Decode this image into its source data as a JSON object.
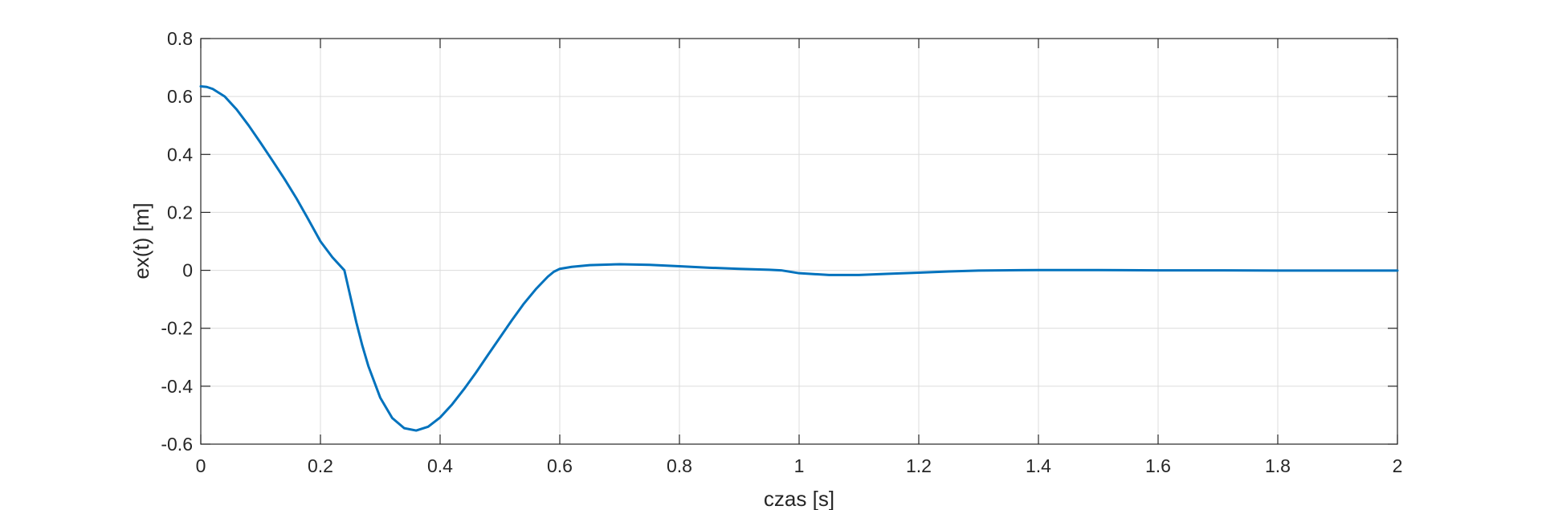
{
  "chart_data": {
    "type": "line",
    "title": "",
    "xlabel": "czas   [s]",
    "ylabel": "ex(t)   [m]",
    "xlim": [
      0,
      2
    ],
    "ylim": [
      -0.6,
      0.8
    ],
    "grid": true,
    "xticks": [
      0,
      0.2,
      0.4,
      0.6,
      0.8,
      1,
      1.2,
      1.4,
      1.6,
      1.8,
      2
    ],
    "xtick_labels": [
      "0",
      "0.2",
      "0.4",
      "0.6",
      "0.8",
      "1",
      "1.2",
      "1.4",
      "1.6",
      "1.8",
      "2"
    ],
    "yticks": [
      -0.6,
      -0.4,
      -0.2,
      0,
      0.2,
      0.4,
      0.6,
      0.8
    ],
    "ytick_labels": [
      "-0.6",
      "-0.4",
      "-0.2",
      "0",
      "0.2",
      "0.4",
      "0.6",
      "0.8"
    ],
    "series": [
      {
        "color": "#0072bd",
        "x": [
          0,
          0.01,
          0.02,
          0.04,
          0.06,
          0.08,
          0.1,
          0.12,
          0.14,
          0.16,
          0.18,
          0.2,
          0.22,
          0.24,
          0.25,
          0.26,
          0.27,
          0.28,
          0.3,
          0.32,
          0.34,
          0.36,
          0.38,
          0.4,
          0.42,
          0.44,
          0.46,
          0.48,
          0.5,
          0.52,
          0.54,
          0.56,
          0.58,
          0.59,
          0.6,
          0.62,
          0.65,
          0.7,
          0.75,
          0.8,
          0.85,
          0.9,
          0.95,
          0.97,
          1.0,
          1.05,
          1.1,
          1.15,
          1.2,
          1.25,
          1.3,
          1.4,
          1.5,
          1.6,
          1.7,
          1.8,
          1.9,
          2.0
        ],
        "y": [
          0.635,
          0.633,
          0.626,
          0.6,
          0.555,
          0.5,
          0.44,
          0.378,
          0.315,
          0.248,
          0.175,
          0.1,
          0.045,
          0.0,
          -0.09,
          -0.18,
          -0.26,
          -0.33,
          -0.44,
          -0.51,
          -0.545,
          -0.553,
          -0.54,
          -0.508,
          -0.463,
          -0.41,
          -0.353,
          -0.292,
          -0.232,
          -0.172,
          -0.115,
          -0.065,
          -0.022,
          -0.005,
          0.005,
          0.012,
          0.018,
          0.021,
          0.019,
          0.014,
          0.009,
          0.005,
          0.002,
          0.0,
          -0.01,
          -0.016,
          -0.016,
          -0.012,
          -0.008,
          -0.004,
          -0.001,
          0.001,
          0.001,
          0.0,
          0.0,
          -0.001,
          -0.001,
          -0.001
        ]
      }
    ]
  }
}
